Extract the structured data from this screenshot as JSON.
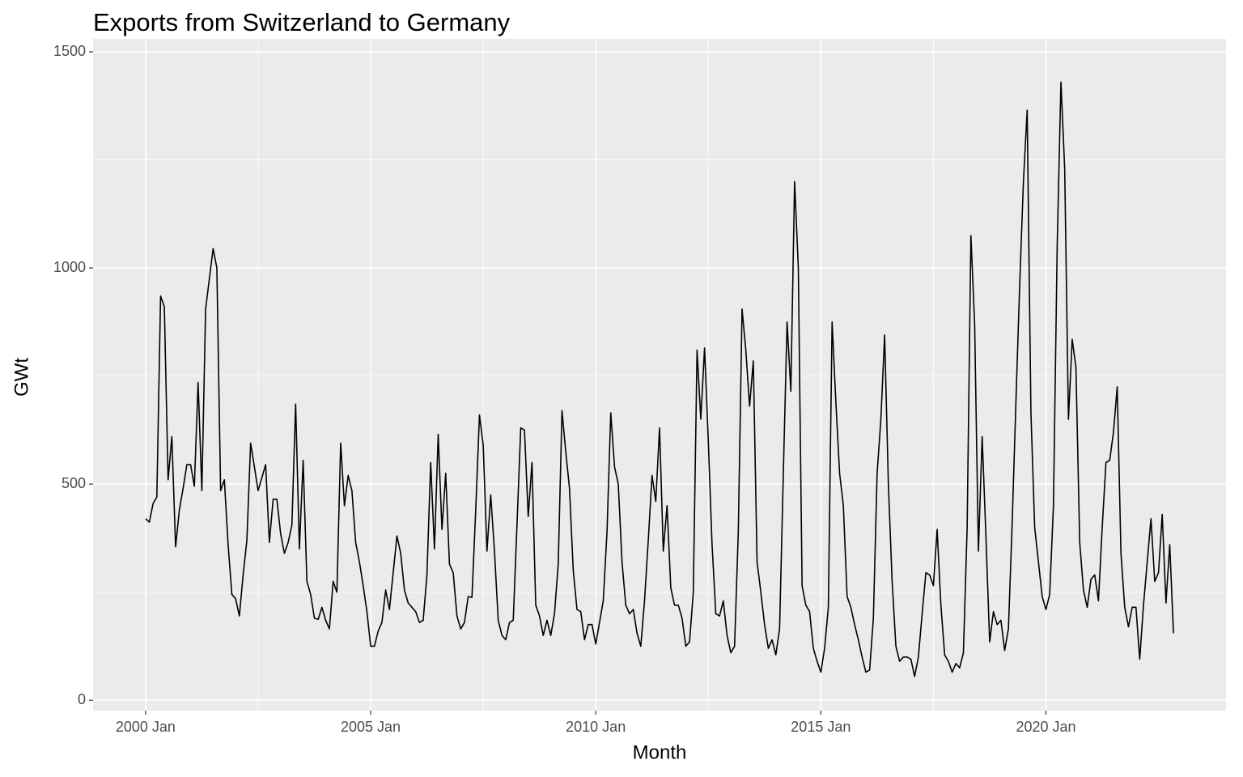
{
  "chart_data": {
    "type": "line",
    "title": "Exports from Switzerland to Germany",
    "x_label": "Month",
    "y_label": "GWt",
    "color": "#000000",
    "x": [
      "2000 Jan",
      "2000 Feb",
      "2000 Mar",
      "2000 Apr",
      "2000 May",
      "2000 Jun",
      "2000 Jul",
      "2000 Aug",
      "2000 Sep",
      "2000 Oct",
      "2000 Nov",
      "2000 Dec",
      "2001 Jan",
      "2001 Feb",
      "2001 Mar",
      "2001 Apr",
      "2001 May",
      "2001 Jun",
      "2001 Jul",
      "2001 Aug",
      "2001 Sep",
      "2001 Oct",
      "2001 Nov",
      "2001 Dec",
      "2002 Jan",
      "2002 Feb",
      "2002 Mar",
      "2002 Apr",
      "2002 May",
      "2002 Jun",
      "2002 Jul",
      "2002 Aug",
      "2002 Sep",
      "2002 Oct",
      "2002 Nov",
      "2002 Dec",
      "2003 Jan",
      "2003 Feb",
      "2003 Mar",
      "2003 Apr",
      "2003 May",
      "2003 Jun",
      "2003 Jul",
      "2003 Aug",
      "2003 Sep",
      "2003 Oct",
      "2003 Nov",
      "2003 Dec",
      "2004 Jan",
      "2004 Feb",
      "2004 Mar",
      "2004 Apr",
      "2004 May",
      "2004 Jun",
      "2004 Jul",
      "2004 Aug",
      "2004 Sep",
      "2004 Oct",
      "2004 Nov",
      "2004 Dec",
      "2005 Jan",
      "2005 Feb",
      "2005 Mar",
      "2005 Apr",
      "2005 May",
      "2005 Jun",
      "2005 Jul",
      "2005 Aug",
      "2005 Sep",
      "2005 Oct",
      "2005 Nov",
      "2005 Dec",
      "2006 Jan",
      "2006 Feb",
      "2006 Mar",
      "2006 Apr",
      "2006 May",
      "2006 Jun",
      "2006 Jul",
      "2006 Aug",
      "2006 Sep",
      "2006 Oct",
      "2006 Nov",
      "2006 Dec",
      "2007 Jan",
      "2007 Feb",
      "2007 Mar",
      "2007 Apr",
      "2007 May",
      "2007 Jun",
      "2007 Jul",
      "2007 Aug",
      "2007 Sep",
      "2007 Oct",
      "2007 Nov",
      "2007 Dec",
      "2008 Jan",
      "2008 Feb",
      "2008 Mar",
      "2008 Apr",
      "2008 May",
      "2008 Jun",
      "2008 Jul",
      "2008 Aug",
      "2008 Sep",
      "2008 Oct",
      "2008 Nov",
      "2008 Dec",
      "2009 Jan",
      "2009 Feb",
      "2009 Mar",
      "2009 Apr",
      "2009 May",
      "2009 Jun",
      "2009 Jul",
      "2009 Aug",
      "2009 Sep",
      "2009 Oct",
      "2009 Nov",
      "2009 Dec",
      "2010 Jan",
      "2010 Feb",
      "2010 Mar",
      "2010 Apr",
      "2010 May",
      "2010 Jun",
      "2010 Jul",
      "2010 Aug",
      "2010 Sep",
      "2010 Oct",
      "2010 Nov",
      "2010 Dec",
      "2011 Jan",
      "2011 Feb",
      "2011 Mar",
      "2011 Apr",
      "2011 May",
      "2011 Jun",
      "2011 Jul",
      "2011 Aug",
      "2011 Sep",
      "2011 Oct",
      "2011 Nov",
      "2011 Dec",
      "2012 Jan",
      "2012 Feb",
      "2012 Mar",
      "2012 Apr",
      "2012 May",
      "2012 Jun",
      "2012 Jul",
      "2012 Aug",
      "2012 Sep",
      "2012 Oct",
      "2012 Nov",
      "2012 Dec",
      "2013 Jan",
      "2013 Feb",
      "2013 Mar",
      "2013 Apr",
      "2013 May",
      "2013 Jun",
      "2013 Jul",
      "2013 Aug",
      "2013 Sep",
      "2013 Oct",
      "2013 Nov",
      "2013 Dec",
      "2014 Jan",
      "2014 Feb",
      "2014 Mar",
      "2014 Apr",
      "2014 May",
      "2014 Jun",
      "2014 Jul",
      "2014 Aug",
      "2014 Sep",
      "2014 Oct",
      "2014 Nov",
      "2014 Dec",
      "2015 Jan",
      "2015 Feb",
      "2015 Mar",
      "2015 Apr",
      "2015 May",
      "2015 Jun",
      "2015 Jul",
      "2015 Aug",
      "2015 Sep",
      "2015 Oct",
      "2015 Nov",
      "2015 Dec",
      "2016 Jan",
      "2016 Feb",
      "2016 Mar",
      "2016 Apr",
      "2016 May",
      "2016 Jun",
      "2016 Jul",
      "2016 Aug",
      "2016 Sep",
      "2016 Oct",
      "2016 Nov",
      "2016 Dec",
      "2017 Jan",
      "2017 Feb",
      "2017 Mar",
      "2017 Apr",
      "2017 May",
      "2017 Jun",
      "2017 Jul",
      "2017 Aug",
      "2017 Sep",
      "2017 Oct",
      "2017 Nov",
      "2017 Dec",
      "2018 Jan",
      "2018 Feb",
      "2018 Mar",
      "2018 Apr",
      "2018 May",
      "2018 Jun",
      "2018 Jul",
      "2018 Aug",
      "2018 Sep",
      "2018 Oct",
      "2018 Nov",
      "2018 Dec",
      "2019 Jan",
      "2019 Feb",
      "2019 Mar",
      "2019 Apr",
      "2019 May",
      "2019 Jun",
      "2019 Jul",
      "2019 Aug",
      "2019 Sep",
      "2019 Oct",
      "2019 Nov",
      "2019 Dec",
      "2020 Jan",
      "2020 Feb",
      "2020 Mar",
      "2020 Apr",
      "2020 May",
      "2020 Jun",
      "2020 Jul",
      "2020 Aug",
      "2020 Sep",
      "2020 Oct",
      "2020 Nov",
      "2020 Dec",
      "2021 Jan",
      "2021 Feb",
      "2021 Mar",
      "2021 Apr",
      "2021 May",
      "2021 Jun",
      "2021 Jul",
      "2021 Aug",
      "2021 Sep",
      "2021 Oct",
      "2021 Nov",
      "2021 Dec",
      "2022 Jan",
      "2022 Feb",
      "2022 Mar",
      "2022 Apr",
      "2022 May",
      "2022 Jun",
      "2022 Jul",
      "2022 Aug",
      "2022 Sep",
      "2022 Oct",
      "2022 Nov"
    ],
    "values": [
      420,
      412,
      455,
      470,
      935,
      910,
      510,
      610,
      355,
      440,
      490,
      545,
      545,
      495,
      735,
      485,
      905,
      975,
      1045,
      1000,
      485,
      510,
      360,
      245,
      235,
      195,
      290,
      370,
      595,
      540,
      485,
      515,
      545,
      365,
      465,
      465,
      385,
      340,
      365,
      405,
      685,
      350,
      555,
      275,
      245,
      190,
      187,
      215,
      185,
      165,
      275,
      250,
      595,
      450,
      520,
      485,
      365,
      320,
      265,
      205,
      125,
      125,
      160,
      180,
      255,
      210,
      295,
      380,
      340,
      255,
      225,
      215,
      205,
      180,
      185,
      290,
      550,
      350,
      615,
      395,
      525,
      315,
      295,
      195,
      165,
      180,
      240,
      238,
      440,
      660,
      590,
      345,
      475,
      345,
      185,
      150,
      140,
      180,
      185,
      405,
      630,
      625,
      425,
      550,
      220,
      195,
      150,
      185,
      150,
      200,
      315,
      670,
      575,
      490,
      300,
      210,
      205,
      140,
      175,
      175,
      130,
      180,
      230,
      390,
      665,
      540,
      500,
      320,
      220,
      200,
      210,
      155,
      125,
      230,
      370,
      520,
      460,
      630,
      345,
      450,
      260,
      220,
      220,
      190,
      125,
      135,
      250,
      810,
      650,
      815,
      600,
      360,
      200,
      195,
      230,
      150,
      110,
      125,
      390,
      905,
      810,
      680,
      785,
      320,
      250,
      175,
      120,
      140,
      105,
      165,
      525,
      875,
      715,
      1200,
      1000,
      265,
      220,
      205,
      120,
      90,
      65,
      120,
      215,
      875,
      690,
      525,
      450,
      240,
      215,
      175,
      140,
      100,
      65,
      70,
      190,
      525,
      650,
      845,
      500,
      275,
      125,
      90,
      100,
      100,
      95,
      55,
      100,
      200,
      295,
      290,
      265,
      395,
      220,
      105,
      90,
      65,
      85,
      75,
      110,
      400,
      1075,
      870,
      345,
      610,
      380,
      135,
      205,
      175,
      185,
      115,
      165,
      410,
      690,
      960,
      1200,
      1365,
      665,
      400,
      320,
      240,
      210,
      245,
      450,
      1050,
      1430,
      1230,
      650,
      835,
      770,
      365,
      255,
      215,
      280,
      290,
      230,
      400,
      550,
      555,
      620,
      725,
      340,
      215,
      170,
      215,
      215,
      95,
      220,
      320,
      420,
      275,
      295,
      430,
      225,
      360,
      155
    ],
    "xlim": [
      "1998 Nov",
      "2024 Jan"
    ],
    "xticks": [
      "2000 Jan",
      "2005 Jan",
      "2010 Jan",
      "2015 Jan",
      "2020 Jan"
    ],
    "ylim": [
      -24,
      1530
    ],
    "yticks": [
      0,
      500,
      1000,
      1500
    ],
    "grid": true
  }
}
